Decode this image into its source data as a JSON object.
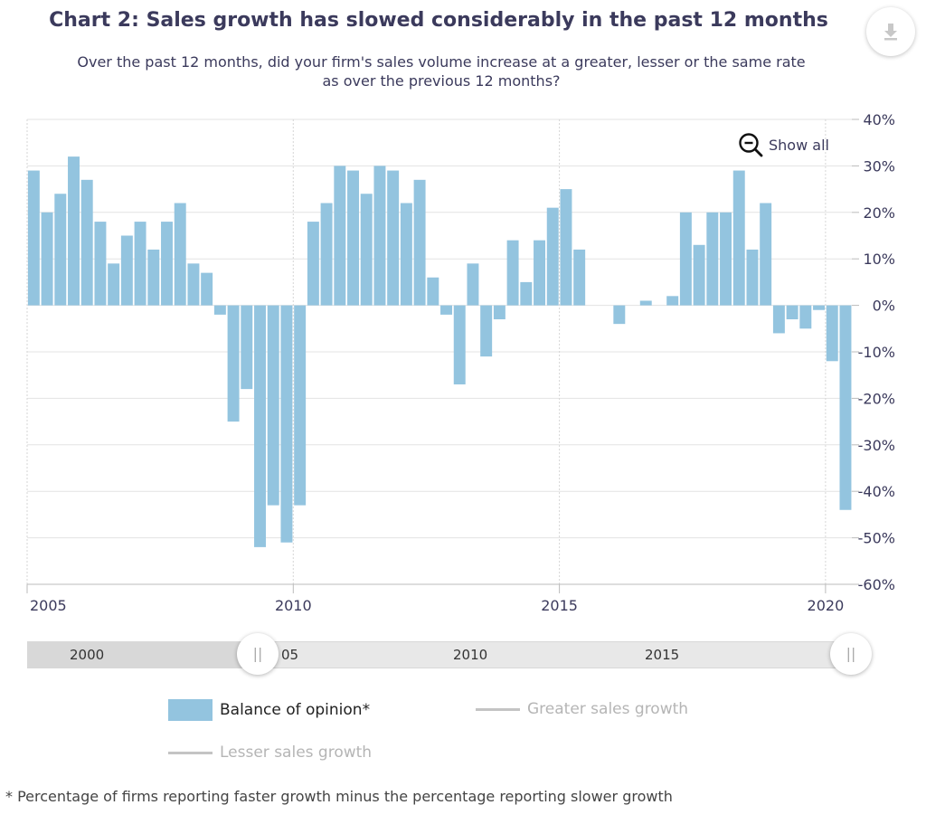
{
  "title": "Chart 2: Sales growth has slowed considerably in the past 12 months",
  "subtitle": "Over the past 12 months, did your firm's sales volume increase at a greater, lesser or the same rate as over the previous 12 months?",
  "show_all_label": "Show all",
  "footnote": "* Percentage of firms reporting faster growth minus the percentage reporting slower growth",
  "navigator": {
    "labels": [
      "2000",
      "05",
      "2010",
      "2015"
    ],
    "handle_glyph": "||"
  },
  "legend": {
    "items": [
      {
        "label": "Balance of opinion*",
        "active": true
      },
      {
        "label": "Greater sales growth",
        "active": false
      },
      {
        "label": "Lesser sales growth",
        "active": false
      }
    ]
  },
  "colors": {
    "bar": "#93c4df",
    "axis_text": "#3b3a5c",
    "grid": "#e3e3e3"
  },
  "chart_data": {
    "type": "bar",
    "title": "Chart 2: Sales growth has slowed considerably in the past 12 months",
    "x_type": "datetime",
    "xlim": [
      "2005-01-01",
      "2020-06-30"
    ],
    "x_ticks": [
      "2005",
      "2010",
      "2015",
      "2020"
    ],
    "ylim": [
      -60,
      40
    ],
    "y_ticks": [
      "40%",
      "30%",
      "20%",
      "10%",
      "0%",
      "-10%",
      "-20%",
      "-30%",
      "-40%",
      "-50%",
      "-60%"
    ],
    "grid": true,
    "legend_position": "bottom",
    "series": [
      {
        "name": "Balance of opinion*",
        "x": [
          "2005 Q1",
          "2005 Q2",
          "2005 Q3",
          "2005 Q4",
          "2006 Q1",
          "2006 Q2",
          "2006 Q3",
          "2006 Q4",
          "2007 Q1",
          "2007 Q2",
          "2007 Q3",
          "2007 Q4",
          "2008 Q1",
          "2008 Q2",
          "2008 Q3",
          "2008 Q4",
          "2009 Q1",
          "2009 Q2",
          "2009 Q3",
          "2009 Q4",
          "2010 Q1",
          "2010 Q2",
          "2010 Q3",
          "2010 Q4",
          "2011 Q1",
          "2011 Q2",
          "2011 Q3",
          "2011 Q4",
          "2012 Q1",
          "2012 Q2",
          "2012 Q3",
          "2012 Q4",
          "2013 Q1",
          "2013 Q2",
          "2013 Q3",
          "2013 Q4",
          "2014 Q1",
          "2014 Q2",
          "2014 Q3",
          "2014 Q4",
          "2015 Q1",
          "2015 Q2",
          "2015 Q3",
          "2015 Q4",
          "2016 Q1",
          "2016 Q2",
          "2016 Q3",
          "2016 Q4",
          "2017 Q1",
          "2017 Q2",
          "2017 Q3",
          "2017 Q4",
          "2018 Q1",
          "2018 Q2",
          "2018 Q3",
          "2018 Q4",
          "2019 Q1",
          "2019 Q2",
          "2019 Q3",
          "2019 Q4",
          "2020 Q1",
          "2020 Q2"
        ],
        "values": [
          29,
          20,
          24,
          32,
          27,
          18,
          9,
          15,
          18,
          12,
          18,
          22,
          9,
          7,
          -2,
          -25,
          -18,
          -52,
          -43,
          -51,
          -43,
          18,
          22,
          30,
          29,
          24,
          30,
          29,
          22,
          27,
          6,
          -2,
          -17,
          9,
          -11,
          -3,
          14,
          5,
          14,
          21,
          25,
          12,
          0,
          0,
          -4,
          0,
          1,
          0,
          2,
          20,
          13,
          20,
          20,
          29,
          12,
          22,
          -6,
          -3,
          -5,
          -1,
          -12,
          -44
        ]
      }
    ]
  }
}
